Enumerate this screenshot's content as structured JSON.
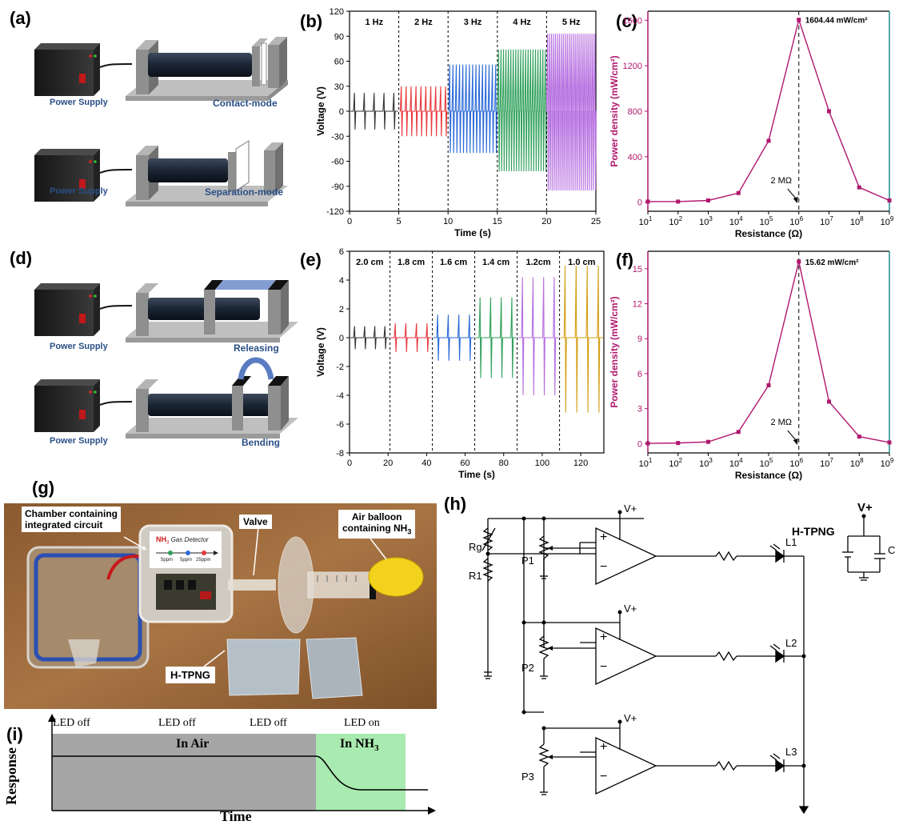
{
  "panel_labels": {
    "a": "(a)",
    "b": "(b)",
    "c": "(c)",
    "d": "(d)",
    "e": "(e)",
    "f": "(f)",
    "g": "(g)",
    "h": "(h)",
    "i": "(i)"
  },
  "panel_a": {
    "top_left": "Power Supply",
    "top_right": "Contact-mode",
    "bottom_left": "Power Supply",
    "bottom_right": "Separation-mode"
  },
  "panel_d": {
    "top_left": "Power Supply",
    "top_right": "Releasing",
    "bottom_left": "Power Supply",
    "bottom_right": "Bending"
  },
  "panel_g": {
    "label_chamber": "Chamber containing integrated circuit",
    "label_chamber_1": "Chamber containing",
    "label_chamber_2": "integrated circuit",
    "label_valve": "Valve",
    "label_balloon_1": "Air balloon",
    "label_balloon_2": "containing NH",
    "label_htpng": "H-TPNG",
    "device_title": "NH",
    "device_title_sub": "3",
    "device_title_rest": "Gas Detector",
    "device_ticks": [
      "5ppm",
      "5ppm",
      "25ppm"
    ]
  },
  "panel_h": {
    "vplus": "V+",
    "htpng": "H-TPNG",
    "rg": "Rg",
    "r1": "R1",
    "p": [
      "P1",
      "P2",
      "P3"
    ],
    "l": [
      "L1",
      "L2",
      "L3"
    ],
    "c": "C",
    "plus": "+",
    "minus": "−"
  },
  "panel_i": {
    "states": [
      "LED off",
      "LED off",
      "LED off",
      "LED on"
    ],
    "air": "In Air",
    "nh3": "In NH",
    "nh3_sub": "3",
    "ylabel": "Response",
    "xlabel": "Time"
  },
  "colors": {
    "black": "#333333",
    "red": "#e8383d",
    "blue": "#2a6ad8",
    "green": "#2fa05a",
    "purple": "#b66fe0",
    "gold": "#d4a017",
    "magenta": "#b0176e"
  },
  "chart_data": [
    {
      "id": "b",
      "type": "line",
      "xlabel": "Time (s)",
      "ylabel": "Voltage (V)",
      "xlim": [
        0,
        25
      ],
      "ylim": [
        -120,
        120
      ],
      "xticks": [
        0,
        5,
        10,
        15,
        20,
        25
      ],
      "yticks": [
        -120,
        -90,
        -60,
        -30,
        0,
        30,
        60,
        90,
        120
      ],
      "segments": [
        {
          "label": "1 Hz",
          "x0": 0,
          "x1": 5,
          "amp_pos": 22,
          "amp_neg": -22,
          "peaks": 5,
          "color": "#333333"
        },
        {
          "label": "2 Hz",
          "x0": 5,
          "x1": 10,
          "amp_pos": 30,
          "amp_neg": -30,
          "peaks": 10,
          "color": "#e8383d"
        },
        {
          "label": "3 Hz",
          "x0": 10,
          "x1": 15,
          "amp_pos": 56,
          "amp_neg": -50,
          "peaks": 15,
          "color": "#2a6ad8"
        },
        {
          "label": "4 Hz",
          "x0": 15,
          "x1": 20,
          "amp_pos": 74,
          "amp_neg": -72,
          "peaks": 20,
          "color": "#2fa05a"
        },
        {
          "label": "5 Hz",
          "x0": 20,
          "x1": 25,
          "amp_pos": 93,
          "amp_neg": -95,
          "peaks": 25,
          "color": "#b66fe0"
        }
      ]
    },
    {
      "id": "c",
      "type": "line",
      "xlabel": "Resistance (Ω)",
      "ylabel": "Power density (mW/cm²)",
      "log_x": true,
      "xlim": [
        10,
        1000000000
      ],
      "ylim": [
        -80,
        1680
      ],
      "yticks": [
        0,
        400,
        800,
        1200,
        1600
      ],
      "xtick_exps": [
        1,
        2,
        3,
        4,
        5,
        6,
        7,
        8,
        9
      ],
      "x": [
        10,
        100,
        1000,
        10000,
        100000,
        1000000,
        10000000,
        100000000,
        1000000000
      ],
      "y": [
        5,
        5,
        15,
        80,
        540,
        1604.44,
        800,
        130,
        15
      ],
      "annotation": "1604.44 mW/cm²",
      "marker_label": "2 MΩ",
      "marker_x": 1000000,
      "color": "#b0176e"
    },
    {
      "id": "e",
      "type": "line",
      "xlabel": "Time (s)",
      "ylabel": "Voltage (V)",
      "xlim": [
        0,
        132
      ],
      "ylim": [
        -8,
        6
      ],
      "xticks": [
        0,
        20,
        40,
        60,
        80,
        100,
        120
      ],
      "yticks": [
        -8,
        -6,
        -4,
        -2,
        0,
        2,
        4,
        6
      ],
      "segments": [
        {
          "label": "2.0 cm",
          "x0": 0,
          "x1": 21,
          "amp_pos": 0.8,
          "amp_neg": -0.8,
          "peaks": 4,
          "color": "#333333"
        },
        {
          "label": "1.8 cm",
          "x0": 21,
          "x1": 43,
          "amp_pos": 1.0,
          "amp_neg": -1.0,
          "peaks": 4,
          "color": "#e8383d"
        },
        {
          "label": "1.6 cm",
          "x0": 43,
          "x1": 65,
          "amp_pos": 1.6,
          "amp_neg": -1.6,
          "peaks": 4,
          "color": "#2a6ad8"
        },
        {
          "label": "1.4 cm",
          "x0": 65,
          "x1": 87,
          "amp_pos": 2.8,
          "amp_neg": -2.8,
          "peaks": 4,
          "color": "#2fa05a"
        },
        {
          "label": "1.2cm",
          "x0": 87,
          "x1": 109,
          "amp_pos": 4.2,
          "amp_neg": -4.0,
          "peaks": 4,
          "color": "#b66fe0"
        },
        {
          "label": "1.0 cm",
          "x0": 109,
          "x1": 132,
          "amp_pos": 5.0,
          "amp_neg": -5.2,
          "peaks": 4,
          "color": "#d4a017"
        }
      ]
    },
    {
      "id": "f",
      "type": "line",
      "xlabel": "Resistance (Ω)",
      "ylabel": "Power density (mW/cm²)",
      "log_x": true,
      "xlim": [
        10,
        1000000000
      ],
      "ylim": [
        -0.8,
        16.5
      ],
      "yticks": [
        0,
        3,
        6,
        9,
        12,
        15
      ],
      "xtick_exps": [
        1,
        2,
        3,
        4,
        5,
        6,
        7,
        8,
        9
      ],
      "x": [
        10,
        100,
        1000,
        10000,
        100000,
        1000000,
        10000000,
        100000000,
        1000000000
      ],
      "y": [
        0.02,
        0.05,
        0.15,
        1.0,
        5.0,
        15.62,
        3.6,
        0.6,
        0.1
      ],
      "annotation": "15.62 mW/cm²",
      "marker_label": "2 MΩ",
      "marker_x": 1000000,
      "color": "#b0176e"
    }
  ]
}
